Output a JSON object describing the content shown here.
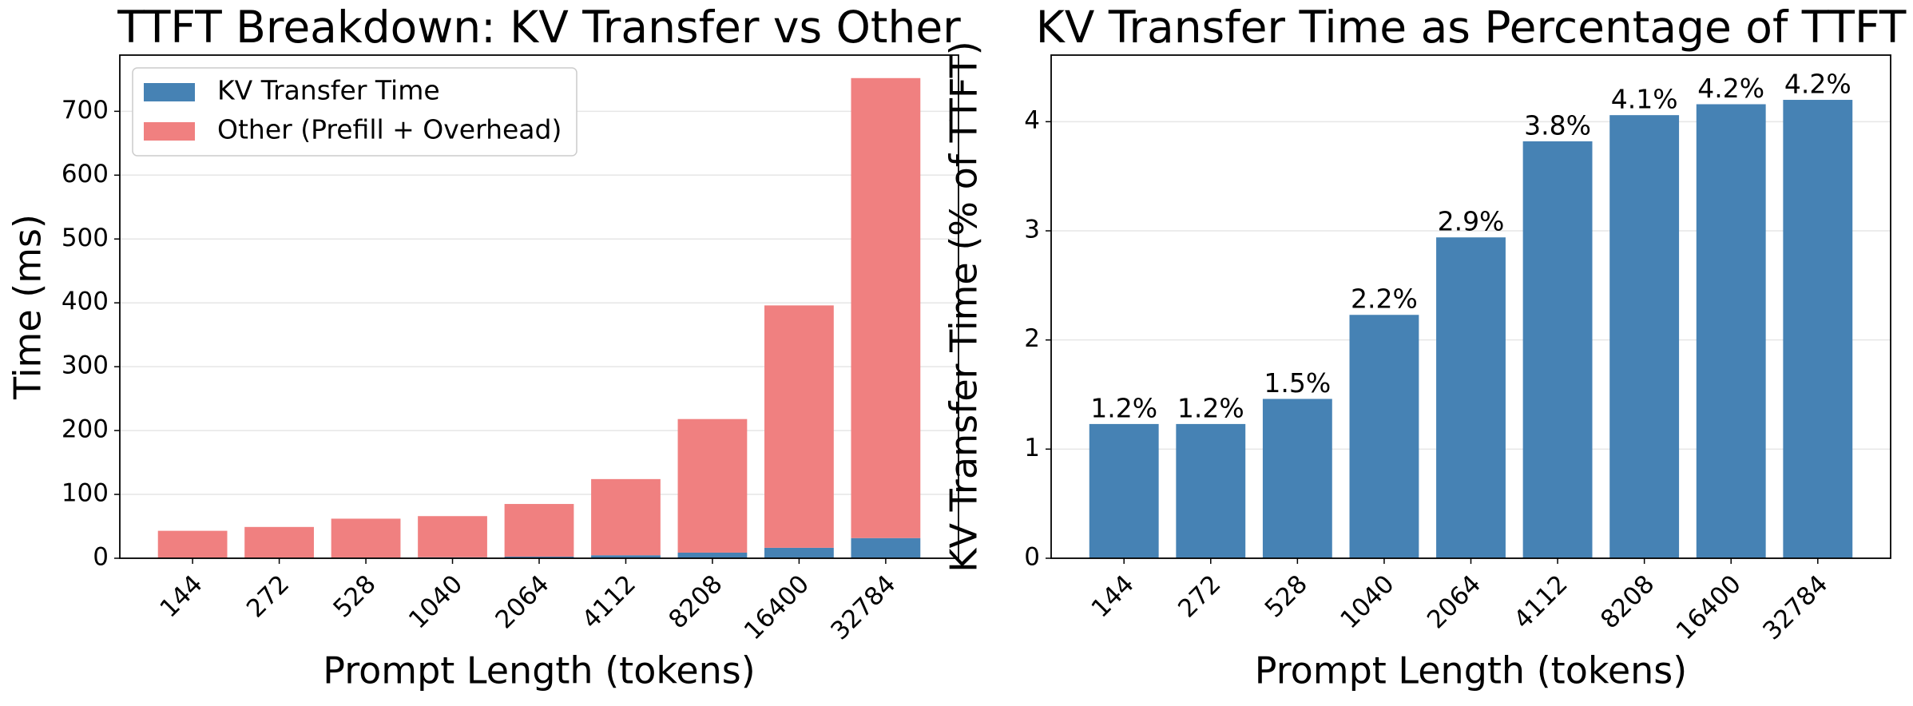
{
  "chart_data": [
    {
      "type": "stacked_bar",
      "title": "TTFT Breakdown: KV Transfer vs Other",
      "xlabel": "Prompt Length (tokens)",
      "ylabel": "Time (ms)",
      "categories": [
        "144",
        "272",
        "528",
        "1040",
        "2064",
        "4112",
        "8208",
        "16400",
        "32784"
      ],
      "series": [
        {
          "name": "KV Transfer Time",
          "color": "#4682b4",
          "values": [
            0.5,
            0.6,
            0.9,
            1.5,
            2.5,
            4.7,
            8.8,
            16.4,
            31.6
          ]
        },
        {
          "name": "Other (Prefill + Overhead)",
          "color": "#f08080",
          "values": [
            42.5,
            48.4,
            61.1,
            64.5,
            82.5,
            119.3,
            209.2,
            379.6,
            720.4
          ]
        }
      ],
      "ylim": [
        0,
        788
      ],
      "yticks": [
        0,
        100,
        200,
        300,
        400,
        500,
        600,
        700
      ],
      "grid": true,
      "legend": "upper-left"
    },
    {
      "type": "bar",
      "title": "KV Transfer Time as Percentage of TTFT",
      "xlabel": "Prompt Length (tokens)",
      "ylabel": "KV Transfer Time (% of TTFT)",
      "categories": [
        "144",
        "272",
        "528",
        "1040",
        "2064",
        "4112",
        "8208",
        "16400",
        "32784"
      ],
      "values": [
        1.23,
        1.23,
        1.46,
        2.23,
        2.94,
        3.82,
        4.06,
        4.16,
        4.2
      ],
      "value_labels": [
        "1.2%",
        "1.2%",
        "1.5%",
        "2.2%",
        "2.9%",
        "3.8%",
        "4.1%",
        "4.2%",
        "4.2%"
      ],
      "color": "#4682b4",
      "ylim": [
        0,
        4.61
      ],
      "yticks": [
        0,
        1,
        2,
        3,
        4
      ],
      "grid": true
    }
  ]
}
